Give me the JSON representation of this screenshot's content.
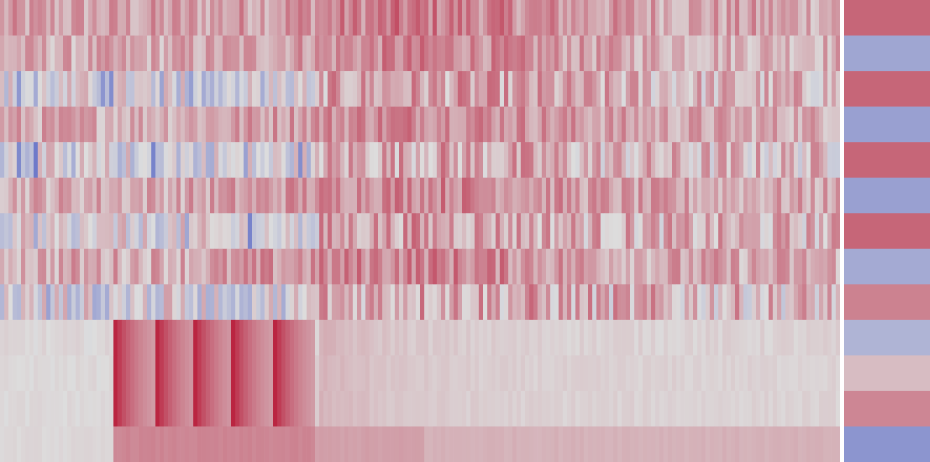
{
  "chart_data": {
    "type": "heatmap",
    "title": "",
    "xlabel": "",
    "ylabel": "",
    "colormap": "coolwarm",
    "value_range": [
      -1,
      1
    ],
    "columns": 200,
    "rows": [
      {
        "mean": 0.26,
        "noise": 0.22,
        "profile": "mixed_hot_mid"
      },
      {
        "mean": 0.22,
        "noise": 0.2,
        "profile": "mixed_hot_mid"
      },
      {
        "mean": 0.16,
        "noise": 0.28,
        "profile": "cool_left_hot_mid"
      },
      {
        "mean": 0.24,
        "noise": 0.2,
        "profile": "mixed_hot_mid"
      },
      {
        "mean": 0.14,
        "noise": 0.3,
        "profile": "cool_left_hot_mid"
      },
      {
        "mean": 0.24,
        "noise": 0.2,
        "profile": "mixed_hot_mid"
      },
      {
        "mean": 0.18,
        "noise": 0.28,
        "profile": "cool_left_hot_mid"
      },
      {
        "mean": 0.24,
        "noise": 0.22,
        "profile": "mixed_hot_mid"
      },
      {
        "mean": 0.16,
        "noise": 0.32,
        "profile": "cool_left_hot_mid"
      },
      {
        "mean": 0.12,
        "noise": 0.08,
        "profile": "blocks_fade"
      },
      {
        "mean": 0.1,
        "noise": 0.06,
        "profile": "blocks_fade"
      },
      {
        "mean": 0.1,
        "noise": 0.06,
        "profile": "blocks_fade"
      },
      {
        "mean": 0.14,
        "noise": 0.04,
        "profile": "blocks_fade_light"
      }
    ],
    "side_column": [
      0.55,
      -0.38,
      0.55,
      -0.42,
      0.55,
      -0.42,
      0.55,
      -0.35,
      0.42,
      -0.28,
      0.15,
      0.4,
      -0.5
    ]
  }
}
